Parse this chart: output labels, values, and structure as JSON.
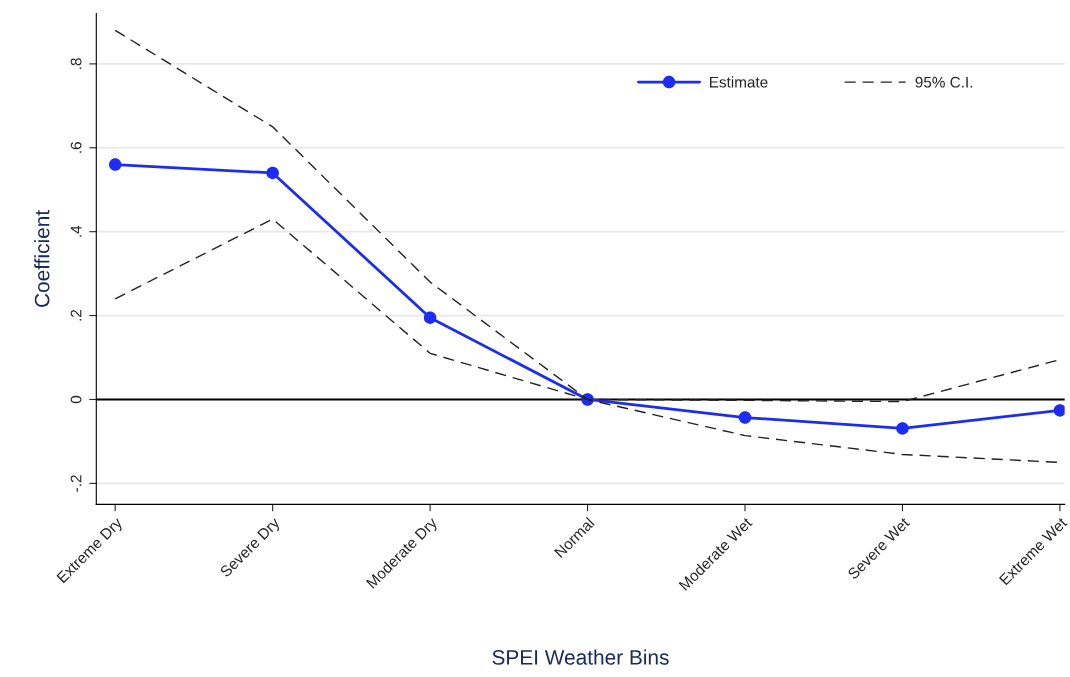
{
  "chart_data": {
    "type": "line",
    "xlabel": "SPEI Weather Bins",
    "ylabel": "Coefficient",
    "categories": [
      "Extreme Dry",
      "Severe Dry",
      "Moderate Dry",
      "Normal",
      "Moderate Wet",
      "Severe Wet",
      "Extreme Wet"
    ],
    "series": [
      {
        "name": "Estimate",
        "color": "#1c2cf0",
        "values": [
          0.56,
          0.54,
          0.195,
          0,
          -0.043,
          -0.069,
          -0.026
        ],
        "marker": "circle",
        "line_style": "solid"
      },
      {
        "name": "95% C.I.",
        "color": "#222222",
        "values": [
          0.88,
          0.65,
          0.28,
          0,
          -0.002,
          -0.005,
          0.095
        ],
        "marker": "none",
        "line_style": "dashed"
      },
      {
        "color": "#222222",
        "values": [
          0.24,
          0.43,
          0.11,
          0,
          -0.086,
          -0.131,
          -0.15
        ],
        "marker": "none",
        "line_style": "dashed"
      }
    ],
    "ylim": [
      -0.25,
      0.92
    ],
    "yticks": [
      {
        "value": -0.2,
        "label": "-.2"
      },
      0,
      {
        "value": 0.2,
        "label": ".2"
      },
      {
        "value": 0.4,
        "label": ".4"
      },
      {
        "value": 0.6,
        "label": ".6"
      },
      {
        "value": 0.8,
        "label": ".8"
      }
    ],
    "ref_lines": [
      {
        "axis": "y",
        "value": 0,
        "color": "#000000",
        "line_style": "solid"
      }
    ],
    "grid": "y",
    "legend": "top right"
  }
}
